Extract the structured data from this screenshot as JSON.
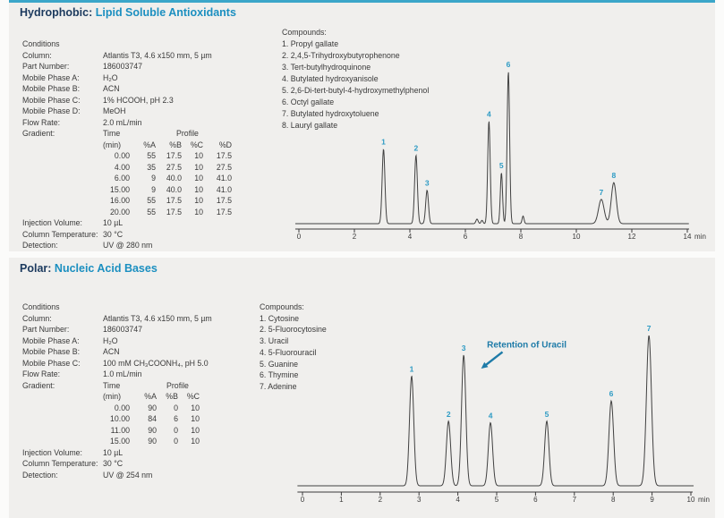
{
  "colors": {
    "accent_bar": "#3ba6c9",
    "title_navy": "#1c3a5e",
    "title_blue": "#1b8fc0",
    "peak_label_blue": "#2e9bc4",
    "annotation_blue": "#1e7ba8",
    "panel_background": "#f0efed",
    "trace": "#414141",
    "axis": "#3a3a3a",
    "body_text": "#3a3a3a"
  },
  "sections": [
    {
      "title_prefix": "Hydrophobic:",
      "title_main": "Lipid Soluble Antioxidants",
      "conditions": {
        "header": "Conditions",
        "rows": [
          {
            "label": "Column:",
            "value": "Atlantis T3, 4.6 x150 mm, 5 µm"
          },
          {
            "label": "Part Number:",
            "value": "186003747"
          },
          {
            "label": "Mobile Phase A:",
            "value": "H₂O"
          },
          {
            "label": "Mobile Phase B:",
            "value": "ACN"
          },
          {
            "label": "Mobile Phase C:",
            "value": "1% HCOOH, pH 2.3"
          },
          {
            "label": "Mobile Phase D:",
            "value": "MeOH"
          },
          {
            "label": "Flow Rate:",
            "value": "2.0 mL/min"
          }
        ],
        "gradient": {
          "label": "Gradient:",
          "time_header": "Time",
          "profile_header": "Profile",
          "columns": [
            "(min)",
            "%A",
            "%B",
            "%C",
            "%D"
          ],
          "rows": [
            [
              "0.00",
              "55",
              "17.5",
              "10",
              "17.5"
            ],
            [
              "4.00",
              "35",
              "27.5",
              "10",
              "27.5"
            ],
            [
              "6.00",
              "9",
              "40.0",
              "10",
              "41.0"
            ],
            [
              "15.00",
              "9",
              "40.0",
              "10",
              "41.0"
            ],
            [
              "16.00",
              "55",
              "17.5",
              "10",
              "17.5"
            ],
            [
              "20.00",
              "55",
              "17.5",
              "10",
              "17.5"
            ]
          ]
        },
        "footer_rows": [
          {
            "label": "Injection Volume:",
            "value": "10 µL"
          },
          {
            "label": "Column Temperature:",
            "value": "30 °C"
          },
          {
            "label": "Detection:",
            "value": "UV @ 280 nm"
          }
        ]
      },
      "compounds": {
        "header": "Compounds:",
        "items": [
          "1. Propyl gallate",
          "2. 2,4,5-Trihydroxybutyrophenone",
          "3. Tert-butylhydroquinone",
          "4. Butylated hydroxyanisole",
          "5. 2,6-Di-tert-butyl-4-hydroxymethylphenol",
          "6. Octyl gallate",
          "7. Butylated hydroxytoluene",
          "8. Lauryl gallate"
        ]
      }
    },
    {
      "title_prefix": "Polar:",
      "title_main": "Nucleic Acid Bases",
      "conditions": {
        "header": "Conditions",
        "rows": [
          {
            "label": "Column:",
            "value": "Atlantis T3, 4.6 x150 mm, 5 µm"
          },
          {
            "label": "Part Number:",
            "value": "186003747"
          },
          {
            "label": "Mobile Phase A:",
            "value": "H₂O"
          },
          {
            "label": "Mobile Phase B:",
            "value": "ACN"
          },
          {
            "label": "Mobile Phase C:",
            "value": "100 mM CH₃COONH₄, pH 5.0"
          },
          {
            "label": "Flow Rate:",
            "value": "1.0 mL/min"
          }
        ],
        "gradient": {
          "label": "Gradient:",
          "time_header": "Time",
          "profile_header": "Profile",
          "columns": [
            "(min)",
            "%A",
            "%B",
            "%C"
          ],
          "rows": [
            [
              "0.00",
              "90",
              "0",
              "10"
            ],
            [
              "10.00",
              "84",
              "6",
              "10"
            ],
            [
              "11.00",
              "90",
              "0",
              "10"
            ],
            [
              "15.00",
              "90",
              "0",
              "10"
            ]
          ]
        },
        "footer_rows": [
          {
            "label": "Injection Volume:",
            "value": "10 µL"
          },
          {
            "label": "Column Temperature:",
            "value": "30 °C"
          },
          {
            "label": "Detection:",
            "value": "UV @ 254 nm"
          }
        ]
      },
      "compounds": {
        "header": "Compounds:",
        "items": [
          "1. Cytosine",
          "2. 5-Fluorocytosine",
          "3. Uracil",
          "4. 5-Fluorouracil",
          "5. Guanine",
          "6. Thymine",
          "7. Adenine"
        ]
      }
    }
  ],
  "chart_data": [
    {
      "type": "line",
      "title": "",
      "xlabel": "min",
      "x_unit": "min",
      "xlim": [
        0,
        14
      ],
      "x_ticks": [
        0,
        2,
        4,
        6,
        8,
        10,
        12,
        14
      ],
      "ylabel": "",
      "peaks": [
        {
          "label": "1",
          "rt_min": 3.05,
          "rel_height": 0.49,
          "sigma_min": 0.05
        },
        {
          "label": "2",
          "rt_min": 4.22,
          "rel_height": 0.45,
          "sigma_min": 0.05
        },
        {
          "label": "3",
          "rt_min": 4.62,
          "rel_height": 0.22,
          "sigma_min": 0.05
        },
        {
          "label": "4",
          "rt_min": 6.85,
          "rel_height": 0.675,
          "sigma_min": 0.045
        },
        {
          "label": "5",
          "rt_min": 7.3,
          "rel_height": 0.335,
          "sigma_min": 0.04
        },
        {
          "label": "6",
          "rt_min": 7.55,
          "rel_height": 1.0,
          "sigma_min": 0.045
        },
        {
          "label": "7",
          "rt_min": 10.9,
          "rel_height": 0.16,
          "sigma_min": 0.1
        },
        {
          "label": "8",
          "rt_min": 11.35,
          "rel_height": 0.27,
          "sigma_min": 0.09
        }
      ],
      "minor_features": [
        {
          "label": "",
          "rt_min": 6.42,
          "rel_height": 0.03,
          "sigma_min": 0.04
        },
        {
          "label": "",
          "rt_min": 6.6,
          "rel_height": 0.022,
          "sigma_min": 0.035
        },
        {
          "label": "",
          "rt_min": 8.08,
          "rel_height": 0.05,
          "sigma_min": 0.035
        }
      ]
    },
    {
      "type": "line",
      "title": "",
      "xlabel": "min",
      "x_unit": "min",
      "xlim": [
        0,
        10
      ],
      "x_ticks": [
        0,
        1,
        2,
        3,
        4,
        5,
        6,
        7,
        8,
        9,
        10
      ],
      "ylabel": "",
      "peaks": [
        {
          "label": "1",
          "rt_min": 2.81,
          "rel_height": 0.73,
          "sigma_min": 0.055
        },
        {
          "label": "2",
          "rt_min": 3.76,
          "rel_height": 0.43,
          "sigma_min": 0.055
        },
        {
          "label": "3",
          "rt_min": 4.15,
          "rel_height": 0.87,
          "sigma_min": 0.055
        },
        {
          "label": "4",
          "rt_min": 4.84,
          "rel_height": 0.42,
          "sigma_min": 0.055
        },
        {
          "label": "5",
          "rt_min": 6.29,
          "rel_height": 0.43,
          "sigma_min": 0.055
        },
        {
          "label": "6",
          "rt_min": 7.95,
          "rel_height": 0.565,
          "sigma_min": 0.06
        },
        {
          "label": "7",
          "rt_min": 8.92,
          "rel_height": 1.0,
          "sigma_min": 0.065
        }
      ],
      "annotation": {
        "text": "Retention of Uracil",
        "text_t": 4.75,
        "text_h": 0.92,
        "arrow_from_t": 5.15,
        "arrow_from_h": 0.89,
        "arrow_to_t": 4.6,
        "arrow_to_h": 0.78
      }
    }
  ]
}
